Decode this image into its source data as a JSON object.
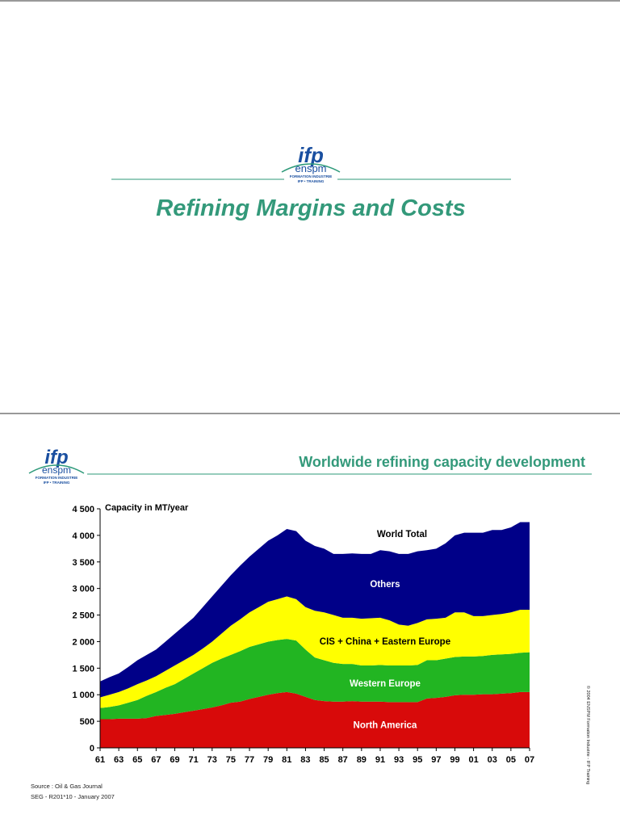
{
  "logo": {
    "mark": "ifp",
    "name": "enspm",
    "line1": "FORMATION INDUSTRIE",
    "line2": "IFP • TRAINING"
  },
  "slides": [
    {
      "title": "Refining Margins and Costs"
    },
    {
      "title": "Worldwide refining capacity development",
      "source": "Source : Oil & Gas Journal",
      "reference": "SEG - R201*10 - January 2007",
      "copyright": "© 2004 ENSPM Formation Industrie - IFP Training"
    }
  ],
  "chart_data": {
    "type": "stacked-area",
    "y_label": "Capacity in MT/year",
    "annotations": [
      "World Total"
    ],
    "x": [
      1961,
      1962,
      1963,
      1964,
      1965,
      1966,
      1967,
      1968,
      1969,
      1970,
      1971,
      1972,
      1973,
      1974,
      1975,
      1976,
      1977,
      1978,
      1979,
      1980,
      1981,
      1982,
      1983,
      1984,
      1985,
      1986,
      1987,
      1988,
      1989,
      1990,
      1991,
      1992,
      1993,
      1994,
      1995,
      1996,
      1997,
      1998,
      1999,
      2000,
      2001,
      2002,
      2003,
      2004,
      2005,
      2006,
      2007
    ],
    "xlim": [
      1961,
      2007
    ],
    "xticks": [
      {
        "value": 1961,
        "label": "61"
      },
      {
        "value": 1963,
        "label": "63"
      },
      {
        "value": 1965,
        "label": "65"
      },
      {
        "value": 1967,
        "label": "67"
      },
      {
        "value": 1969,
        "label": "69"
      },
      {
        "value": 1971,
        "label": "71"
      },
      {
        "value": 1973,
        "label": "73"
      },
      {
        "value": 1975,
        "label": "75"
      },
      {
        "value": 1977,
        "label": "77"
      },
      {
        "value": 1979,
        "label": "79"
      },
      {
        "value": 1981,
        "label": "81"
      },
      {
        "value": 1983,
        "label": "83"
      },
      {
        "value": 1985,
        "label": "85"
      },
      {
        "value": 1987,
        "label": "87"
      },
      {
        "value": 1989,
        "label": "89"
      },
      {
        "value": 1991,
        "label": "91"
      },
      {
        "value": 1993,
        "label": "93"
      },
      {
        "value": 1995,
        "label": "95"
      },
      {
        "value": 1997,
        "label": "97"
      },
      {
        "value": 1999,
        "label": "99"
      },
      {
        "value": 2001,
        "label": "01"
      },
      {
        "value": 2003,
        "label": "03"
      },
      {
        "value": 2005,
        "label": "05"
      },
      {
        "value": 2007,
        "label": "07"
      }
    ],
    "ylim": [
      0,
      4500
    ],
    "yticks": [
      0,
      500,
      {
        "value": 1000,
        "label": "1 000"
      },
      {
        "value": 1500,
        "label": "1 500"
      },
      {
        "value": 2000,
        "label": "2 000"
      },
      {
        "value": 2500,
        "label": "2 500"
      },
      {
        "value": 3000,
        "label": "3 000"
      },
      {
        "value": 3500,
        "label": "3 500"
      },
      {
        "value": 4000,
        "label": "4 000"
      },
      {
        "value": 4500,
        "label": "4 500"
      }
    ],
    "series": [
      {
        "name": "North America",
        "color": "#d80a0a",
        "values": [
          540,
          540,
          550,
          550,
          550,
          560,
          600,
          620,
          640,
          670,
          700,
          730,
          760,
          800,
          850,
          870,
          920,
          960,
          1000,
          1030,
          1050,
          1020,
          960,
          900,
          880,
          870,
          870,
          880,
          870,
          870,
          870,
          860,
          860,
          860,
          860,
          930,
          940,
          960,
          990,
          1000,
          1000,
          1010,
          1010,
          1020,
          1030,
          1050,
          1050
        ]
      },
      {
        "name": "Western Europe",
        "color": "#22b522",
        "values": [
          210,
          230,
          250,
          300,
          350,
          420,
          450,
          510,
          560,
          630,
          700,
          770,
          840,
          880,
          900,
          950,
          980,
          990,
          1000,
          1000,
          1000,
          1000,
          890,
          800,
          770,
          730,
          710,
          700,
          680,
          680,
          690,
          690,
          690,
          690,
          700,
          720,
          710,
          720,
          720,
          720,
          720,
          720,
          740,
          740,
          740,
          740,
          750
        ]
      },
      {
        "name": "CIS + China + Eastern Europe",
        "color": "#ffff00",
        "values": [
          200,
          230,
          250,
          270,
          300,
          290,
          300,
          320,
          350,
          350,
          350,
          370,
          400,
          470,
          550,
          600,
          650,
          700,
          750,
          770,
          800,
          780,
          800,
          880,
          900,
          900,
          870,
          870,
          880,
          890,
          890,
          850,
          770,
          750,
          790,
          770,
          780,
          770,
          840,
          830,
          760,
          750,
          750,
          760,
          780,
          810,
          800
        ]
      },
      {
        "name": "Others",
        "color": "#000088",
        "values": [
          300,
          330,
          350,
          400,
          450,
          480,
          500,
          550,
          600,
          650,
          700,
          780,
          850,
          900,
          950,
          1010,
          1050,
          1100,
          1150,
          1200,
          1270,
          1280,
          1250,
          1220,
          1200,
          1150,
          1200,
          1210,
          1220,
          1210,
          1270,
          1300,
          1330,
          1350,
          1350,
          1300,
          1320,
          1400,
          1450,
          1500,
          1570,
          1570,
          1600,
          1580,
          1600,
          1650,
          1650
        ]
      }
    ]
  }
}
